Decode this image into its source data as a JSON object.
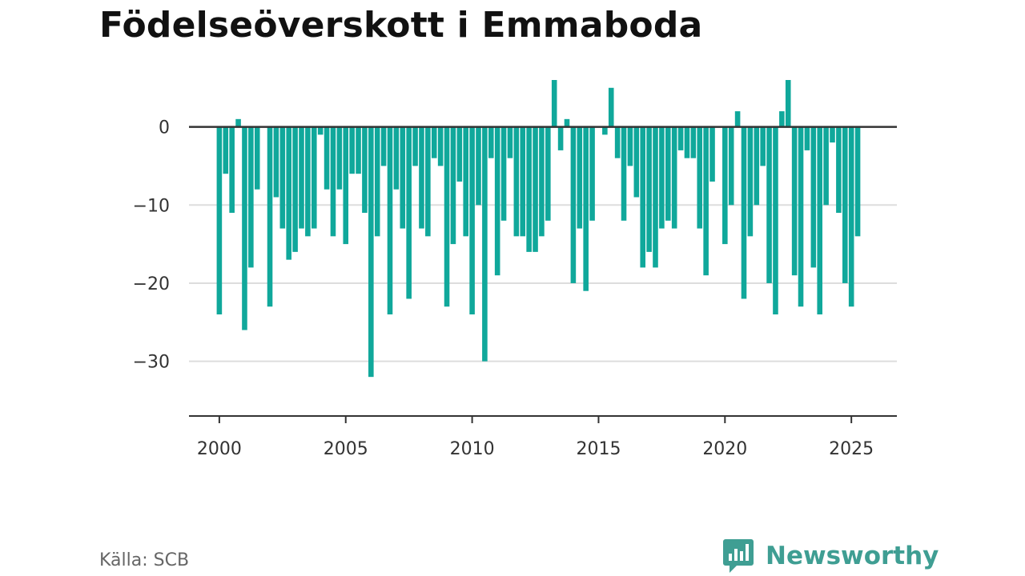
{
  "title": "Födelseöverskott i Emmaboda",
  "source": "Källa: SCB",
  "brand": {
    "name": "Newsworthy",
    "icon": "bar-chart-speech-bubble-icon"
  },
  "colors": {
    "bar": "#10a89b",
    "zero_line": "#333333",
    "grid": "#dddddd",
    "brand": "#3f9e93"
  },
  "chart_data": {
    "type": "bar",
    "title": "Födelseöverskott i Emmaboda",
    "xlabel": "",
    "ylabel": "",
    "grid": true,
    "xlim": [
      1998.8,
      2026.8
    ],
    "ylim": [
      -37,
      6
    ],
    "x_ticks": [
      2000,
      2005,
      2010,
      2015,
      2020,
      2025
    ],
    "y_ticks": [
      0,
      -10,
      -20,
      -30
    ],
    "y_tick_labels": [
      "0",
      "−10",
      "−20",
      "−30"
    ],
    "bar_width_months": 2.5,
    "start": "2000-01",
    "period": "month",
    "values": [
      -24,
      -6,
      -11,
      1,
      -26,
      -18,
      -8,
      0,
      -23,
      -9,
      -13,
      -17,
      -16,
      -13,
      -14,
      -13,
      -1,
      -8,
      -14,
      -8,
      -15,
      -6,
      -6,
      -11,
      -32,
      -14,
      -5,
      -24,
      -8,
      -13,
      -22,
      -5,
      -13,
      -14,
      -4,
      -5,
      -23,
      -15,
      -7,
      -14,
      -24,
      -10,
      -30,
      -4,
      -19,
      -12,
      -4,
      -14,
      -14,
      -16,
      -16,
      -14,
      -12,
      6,
      -3,
      1,
      -20,
      -13,
      -21,
      -12,
      0,
      -1,
      5,
      -4,
      -12,
      -5,
      -9,
      -18,
      -16,
      -18,
      -13,
      -12,
      -13,
      -3,
      -4,
      -4,
      -13,
      -19,
      -7,
      0,
      -15,
      -10,
      2,
      -22,
      -14,
      -10,
      -5,
      -20,
      -24,
      2,
      6,
      -19,
      -23,
      -3,
      -18,
      -24,
      -10,
      -2,
      -11,
      -20,
      -23,
      -14
    ]
  }
}
